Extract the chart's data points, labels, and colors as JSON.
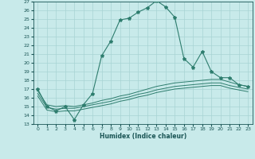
{
  "xlabel": "Humidex (Indice chaleur)",
  "background_color": "#c8eaea",
  "grid_color": "#a8d4d4",
  "line_color": "#2e7d6e",
  "xlim": [
    -0.5,
    23.5
  ],
  "ylim": [
    13,
    27
  ],
  "yticks": [
    13,
    14,
    15,
    16,
    17,
    18,
    19,
    20,
    21,
    22,
    23,
    24,
    25,
    26,
    27
  ],
  "xticks": [
    0,
    1,
    2,
    3,
    4,
    5,
    6,
    7,
    8,
    9,
    10,
    11,
    12,
    13,
    14,
    15,
    16,
    17,
    18,
    19,
    20,
    21,
    22,
    23
  ],
  "main_x": [
    0,
    1,
    2,
    3,
    4,
    5,
    6,
    7,
    8,
    9,
    10,
    11,
    12,
    13,
    14,
    15,
    16,
    17,
    18,
    19,
    20,
    21,
    22,
    23
  ],
  "main_y": [
    17,
    15,
    14.5,
    15,
    13.5,
    15.2,
    16.5,
    20.8,
    22.5,
    24.9,
    25.1,
    25.8,
    26.3,
    27.1,
    26.4,
    25.2,
    20.5,
    19.5,
    21.3,
    19.0,
    18.3,
    18.3,
    17.5,
    17.3
  ],
  "line2_x": [
    0,
    1,
    2,
    3,
    4,
    5,
    6,
    7,
    8,
    9,
    10,
    11,
    12,
    13,
    14,
    15,
    16,
    17,
    18,
    19,
    20,
    21,
    22,
    23
  ],
  "line2_y": [
    16.8,
    15.2,
    15.0,
    15.1,
    15.0,
    15.2,
    15.4,
    15.7,
    15.9,
    16.2,
    16.4,
    16.7,
    17.0,
    17.3,
    17.5,
    17.7,
    17.8,
    17.9,
    18.0,
    18.1,
    18.1,
    17.8,
    17.5,
    17.3
  ],
  "line3_x": [
    0,
    1,
    2,
    3,
    4,
    5,
    6,
    7,
    8,
    9,
    10,
    11,
    12,
    13,
    14,
    15,
    16,
    17,
    18,
    19,
    20,
    21,
    22,
    23
  ],
  "line3_y": [
    16.5,
    14.9,
    14.7,
    14.8,
    14.8,
    15.0,
    15.2,
    15.4,
    15.6,
    15.9,
    16.1,
    16.4,
    16.6,
    16.9,
    17.1,
    17.3,
    17.4,
    17.5,
    17.6,
    17.7,
    17.7,
    17.4,
    17.2,
    17.0
  ],
  "line4_x": [
    0,
    1,
    2,
    3,
    4,
    5,
    6,
    7,
    8,
    9,
    10,
    11,
    12,
    13,
    14,
    15,
    16,
    17,
    18,
    19,
    20,
    21,
    22,
    23
  ],
  "line4_y": [
    16.2,
    14.6,
    14.4,
    14.5,
    14.5,
    14.7,
    14.9,
    15.1,
    15.3,
    15.6,
    15.8,
    16.1,
    16.3,
    16.6,
    16.8,
    17.0,
    17.1,
    17.2,
    17.3,
    17.4,
    17.4,
    17.1,
    16.9,
    16.7
  ]
}
